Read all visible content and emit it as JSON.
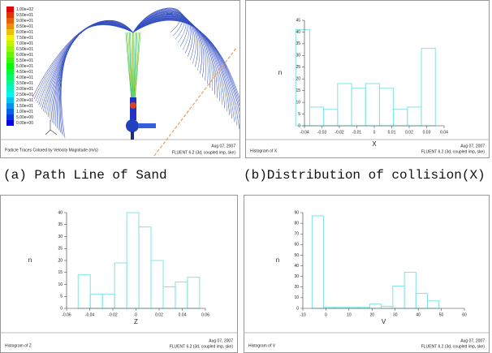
{
  "path_line": {
    "title": "Particle Traces Colored by Velocity Magnitude (m/s)",
    "date": "Aug 07, 2007",
    "solver": "FLUENT 6.2 (3d, coupled imp, ske)",
    "colorbar_labels": [
      "1.00e+02",
      "9.50e+01",
      "9.00e+01",
      "8.50e+01",
      "8.00e+01",
      "7.50e+01",
      "7.00e+01",
      "6.50e+01",
      "6.00e+01",
      "5.50e+01",
      "5.00e+01",
      "4.50e+01",
      "4.00e+01",
      "3.50e+01",
      "3.00e+01",
      "2.50e+01",
      "2.00e+01",
      "1.50e+01",
      "1.00e+01",
      "5.00e+00",
      "0.00e+00"
    ]
  },
  "captions": [
    "(a) Path Line of Sand",
    "(b)Distribution of collision(X)"
  ],
  "chart_data": [
    {
      "type": "histogram",
      "title": "Histogram of X",
      "date": "Aug 07, 2007",
      "solver": "FLUENT 6.2 (3d, coupled imp, ske)",
      "xlabel": "X",
      "ylabel": "n",
      "color": "#7fe3e6",
      "bins": [
        -0.045,
        -0.037,
        -0.029,
        -0.021,
        -0.013,
        -0.005,
        0.003,
        0.011,
        0.019,
        0.027,
        0.035
      ],
      "values": [
        41,
        8,
        7,
        18,
        16,
        18,
        16,
        7,
        8,
        33
      ],
      "xlim": [
        -0.04,
        0.04
      ],
      "xticks": [
        -0.04,
        -0.03,
        -0.02,
        -0.01,
        0,
        0.01,
        0.02,
        0.03,
        0.04
      ],
      "ylim": [
        0,
        45
      ],
      "yticks": [
        0,
        5,
        10,
        15,
        20,
        25,
        30,
        35,
        40,
        45
      ]
    },
    {
      "type": "histogram",
      "title": "Histogram of Z",
      "date": "Aug 07, 2007",
      "solver": "FLUENT 6.2 (3d, coupled imp, ske)",
      "xlabel": "Z",
      "ylabel": "n",
      "color": "#7fe3e6",
      "bins": [
        -0.05,
        -0.0395,
        -0.029,
        -0.0185,
        -0.008,
        0.0025,
        0.013,
        0.0235,
        0.034,
        0.0445,
        0.055
      ],
      "values": [
        14,
        6,
        6,
        19,
        40,
        34,
        20,
        9,
        11,
        13
      ],
      "xlim": [
        -0.06,
        0.06
      ],
      "xticks": [
        -0.06,
        -0.04,
        -0.02,
        0,
        0.02,
        0.04,
        0.06
      ],
      "ylim": [
        0,
        40
      ],
      "yticks": [
        0,
        5,
        10,
        15,
        20,
        25,
        30,
        35,
        40
      ]
    },
    {
      "type": "histogram",
      "title": "Histogram of V",
      "date": "Aug 07, 2007",
      "solver": "FLUENT 6.2 (3d, coupled imp, ske)",
      "xlabel": "V",
      "ylabel": "n",
      "color": "#7fe3e6",
      "bins": [
        -6,
        -1,
        4,
        9,
        14,
        19,
        24,
        29,
        34,
        39,
        44,
        49
      ],
      "values": [
        87,
        1,
        1,
        1,
        1,
        4,
        2,
        21,
        34,
        14,
        7
      ],
      "xlim": [
        -10,
        60
      ],
      "xticks": [
        -10,
        0,
        10,
        20,
        30,
        40,
        50,
        60
      ],
      "ylim": [
        0,
        90
      ],
      "yticks": [
        0,
        10,
        20,
        30,
        40,
        50,
        60,
        70,
        80,
        90
      ]
    }
  ]
}
